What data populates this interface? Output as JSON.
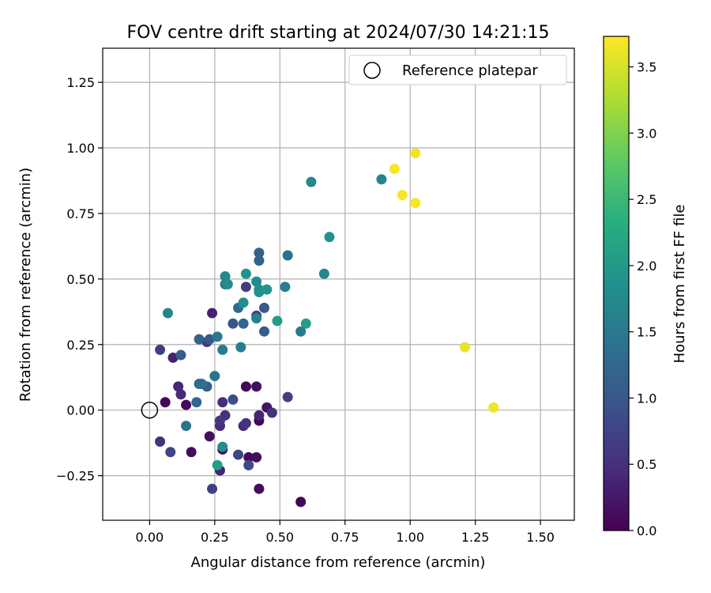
{
  "chart_data": {
    "type": "scatter",
    "title": "FOV centre drift starting at 2024/07/30 14:21:15",
    "xlabel": "Angular distance from reference (arcmin)",
    "ylabel": "Rotation from reference (arcmin)",
    "xlim": [
      -0.18,
      1.63
    ],
    "ylim": [
      -0.42,
      1.38
    ],
    "x_ticks": [
      0.0,
      0.25,
      0.5,
      0.75,
      1.0,
      1.25,
      1.5
    ],
    "x_tick_labels": [
      "0.00",
      "0.25",
      "0.50",
      "0.75",
      "1.00",
      "1.25",
      "1.50"
    ],
    "y_ticks": [
      -0.25,
      0.0,
      0.25,
      0.5,
      0.75,
      1.0,
      1.25
    ],
    "y_tick_labels": [
      "−0.25",
      "0.00",
      "0.25",
      "0.50",
      "0.75",
      "1.00",
      "1.25"
    ],
    "grid": true,
    "legend": {
      "position": "top-right",
      "label": "Reference platepar"
    },
    "reference_point": {
      "x": 0.0,
      "y": 0.0
    },
    "colorbar": {
      "label": "Hours from first FF file",
      "colormap": "viridis",
      "range": [
        0.0,
        3.73
      ],
      "ticks": [
        0.0,
        0.5,
        1.0,
        1.5,
        2.0,
        2.5,
        3.0,
        3.5
      ],
      "tick_labels": [
        "0.0",
        "0.5",
        "1.0",
        "1.5",
        "2.0",
        "2.5",
        "3.0",
        "3.5"
      ]
    },
    "points": [
      {
        "x": 0.06,
        "y": 0.03,
        "h": 0.05
      },
      {
        "x": 0.14,
        "y": 0.02,
        "h": 0.1
      },
      {
        "x": 0.16,
        "y": -0.16,
        "h": 0.1
      },
      {
        "x": 0.23,
        "y": -0.1,
        "h": 0.15
      },
      {
        "x": 0.28,
        "y": -0.15,
        "h": 0.1
      },
      {
        "x": 0.37,
        "y": 0.09,
        "h": 0.05
      },
      {
        "x": 0.41,
        "y": 0.09,
        "h": 0.15
      },
      {
        "x": 0.38,
        "y": -0.18,
        "h": 0.1
      },
      {
        "x": 0.41,
        "y": -0.18,
        "h": 0.15
      },
      {
        "x": 0.42,
        "y": -0.3,
        "h": 0.1
      },
      {
        "x": 0.42,
        "y": -0.04,
        "h": 0.05
      },
      {
        "x": 0.58,
        "y": -0.35,
        "h": 0.05
      },
      {
        "x": 0.27,
        "y": -0.23,
        "h": 0.35
      },
      {
        "x": 0.45,
        "y": 0.01,
        "h": 0.2
      },
      {
        "x": 0.09,
        "y": 0.2,
        "h": 0.35
      },
      {
        "x": 0.11,
        "y": 0.09,
        "h": 0.4
      },
      {
        "x": 0.12,
        "y": 0.06,
        "h": 0.45
      },
      {
        "x": 0.04,
        "y": -0.12,
        "h": 0.55
      },
      {
        "x": 0.24,
        "y": 0.37,
        "h": 0.35
      },
      {
        "x": 0.28,
        "y": 0.03,
        "h": 0.5
      },
      {
        "x": 0.29,
        "y": -0.02,
        "h": 0.55
      },
      {
        "x": 0.27,
        "y": -0.06,
        "h": 0.45
      },
      {
        "x": 0.27,
        "y": -0.04,
        "h": 0.6
      },
      {
        "x": 0.36,
        "y": -0.06,
        "h": 0.45
      },
      {
        "x": 0.37,
        "y": -0.05,
        "h": 0.55
      },
      {
        "x": 0.42,
        "y": -0.02,
        "h": 0.4
      },
      {
        "x": 0.47,
        "y": -0.01,
        "h": 0.55
      },
      {
        "x": 0.53,
        "y": 0.05,
        "h": 0.7
      },
      {
        "x": 0.34,
        "y": -0.17,
        "h": 0.75
      },
      {
        "x": 0.38,
        "y": -0.21,
        "h": 0.85
      },
      {
        "x": 0.24,
        "y": -0.3,
        "h": 0.7
      },
      {
        "x": 0.04,
        "y": 0.23,
        "h": 0.7
      },
      {
        "x": 0.08,
        "y": -0.16,
        "h": 0.8
      },
      {
        "x": 0.22,
        "y": 0.26,
        "h": 0.6
      },
      {
        "x": 0.37,
        "y": 0.47,
        "h": 0.65
      },
      {
        "x": 0.41,
        "y": 0.36,
        "h": 0.7
      },
      {
        "x": 0.32,
        "y": 0.04,
        "h": 0.9
      },
      {
        "x": 0.32,
        "y": 0.33,
        "h": 1.0
      },
      {
        "x": 0.44,
        "y": 0.39,
        "h": 1.05
      },
      {
        "x": 0.44,
        "y": 0.3,
        "h": 1.1
      },
      {
        "x": 0.23,
        "y": 0.27,
        "h": 1.05
      },
      {
        "x": 0.12,
        "y": 0.21,
        "h": 1.1
      },
      {
        "x": 0.22,
        "y": 0.09,
        "h": 1.15
      },
      {
        "x": 0.19,
        "y": 0.27,
        "h": 1.2
      },
      {
        "x": 0.36,
        "y": 0.33,
        "h": 1.25
      },
      {
        "x": 0.42,
        "y": 0.6,
        "h": 1.15
      },
      {
        "x": 0.42,
        "y": 0.57,
        "h": 1.2
      },
      {
        "x": 0.34,
        "y": 0.39,
        "h": 1.3
      },
      {
        "x": 0.53,
        "y": 0.59,
        "h": 1.35
      },
      {
        "x": 0.14,
        "y": -0.06,
        "h": 1.4
      },
      {
        "x": 0.18,
        "y": 0.03,
        "h": 1.25
      },
      {
        "x": 0.19,
        "y": 0.1,
        "h": 1.3
      },
      {
        "x": 0.2,
        "y": 0.1,
        "h": 1.35
      },
      {
        "x": 0.25,
        "y": 0.13,
        "h": 1.45
      },
      {
        "x": 0.26,
        "y": 0.28,
        "h": 1.5
      },
      {
        "x": 0.28,
        "y": 0.23,
        "h": 1.55
      },
      {
        "x": 0.29,
        "y": 0.48,
        "h": 1.6
      },
      {
        "x": 0.35,
        "y": 0.24,
        "h": 1.6
      },
      {
        "x": 0.41,
        "y": 0.35,
        "h": 1.65
      },
      {
        "x": 0.52,
        "y": 0.47,
        "h": 1.6
      },
      {
        "x": 0.58,
        "y": 0.3,
        "h": 1.55
      },
      {
        "x": 0.07,
        "y": 0.37,
        "h": 1.7
      },
      {
        "x": 0.29,
        "y": 0.51,
        "h": 1.75
      },
      {
        "x": 0.3,
        "y": 0.48,
        "h": 1.8
      },
      {
        "x": 0.36,
        "y": 0.41,
        "h": 1.85
      },
      {
        "x": 0.37,
        "y": 0.52,
        "h": 1.9
      },
      {
        "x": 0.41,
        "y": 0.49,
        "h": 1.8
      },
      {
        "x": 0.42,
        "y": 0.46,
        "h": 1.85
      },
      {
        "x": 0.42,
        "y": 0.45,
        "h": 1.9
      },
      {
        "x": 0.45,
        "y": 0.46,
        "h": 1.95
      },
      {
        "x": 0.49,
        "y": 0.34,
        "h": 2.05
      },
      {
        "x": 0.6,
        "y": 0.33,
        "h": 2.1
      },
      {
        "x": 0.67,
        "y": 0.52,
        "h": 1.7
      },
      {
        "x": 0.69,
        "y": 0.66,
        "h": 1.9
      },
      {
        "x": 0.62,
        "y": 0.87,
        "h": 1.75
      },
      {
        "x": 0.89,
        "y": 0.88,
        "h": 1.7
      },
      {
        "x": 0.28,
        "y": -0.14,
        "h": 1.8
      },
      {
        "x": 0.26,
        "y": -0.21,
        "h": 2.05
      },
      {
        "x": 0.94,
        "y": 0.92,
        "h": 3.7
      },
      {
        "x": 1.02,
        "y": 0.98,
        "h": 3.65
      },
      {
        "x": 0.97,
        "y": 0.82,
        "h": 3.7
      },
      {
        "x": 1.02,
        "y": 0.79,
        "h": 3.7
      },
      {
        "x": 1.21,
        "y": 0.24,
        "h": 3.6
      },
      {
        "x": 1.32,
        "y": 0.01,
        "h": 3.65
      }
    ]
  }
}
